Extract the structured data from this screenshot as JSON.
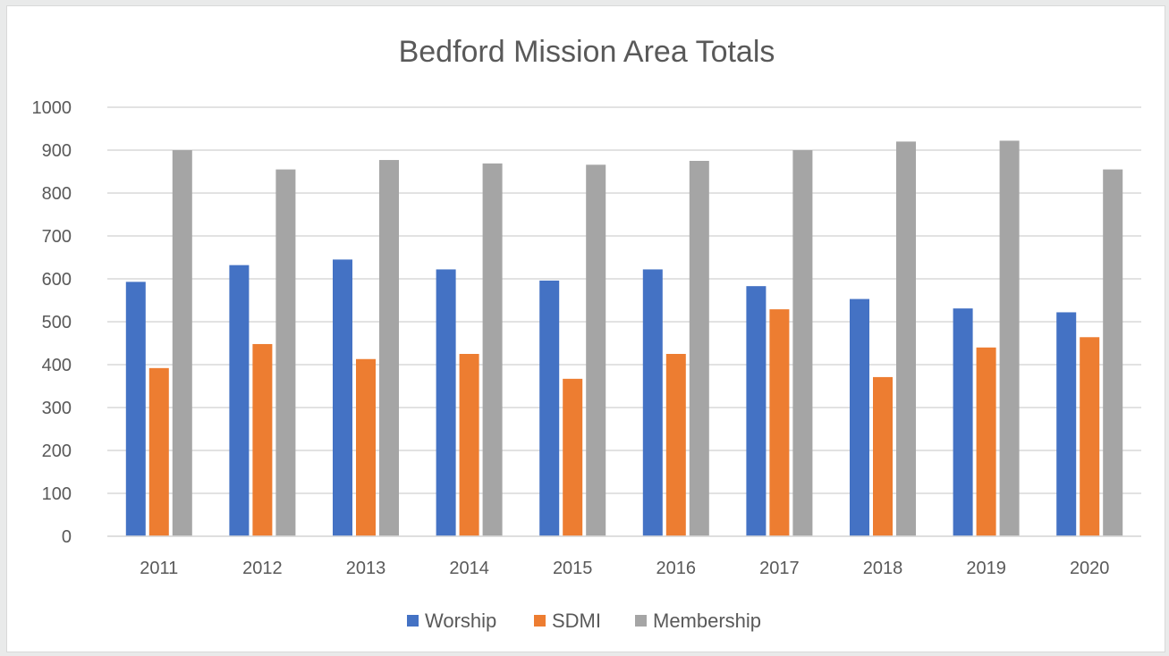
{
  "chart_data": {
    "type": "bar",
    "title": "Bedford Mission Area Totals",
    "xlabel": "",
    "ylabel": "",
    "categories": [
      "2011",
      "2012",
      "2013",
      "2014",
      "2015",
      "2016",
      "2017",
      "2018",
      "2019",
      "2020"
    ],
    "ylim": [
      0,
      1000
    ],
    "yticks": [
      0,
      100,
      200,
      300,
      400,
      500,
      600,
      700,
      800,
      900,
      1000
    ],
    "grid": true,
    "legend_position": "bottom",
    "series": [
      {
        "name": "Worship",
        "color": "#4472c4",
        "values": [
          593,
          632,
          645,
          622,
          596,
          622,
          583,
          553,
          531,
          522
        ]
      },
      {
        "name": "SDMI",
        "color": "#ed7d31",
        "values": [
          392,
          448,
          413,
          425,
          367,
          425,
          529,
          371,
          440,
          464
        ]
      },
      {
        "name": "Membership",
        "color": "#a5a5a5",
        "values": [
          900,
          855,
          877,
          869,
          866,
          875,
          900,
          920,
          922,
          855
        ]
      }
    ]
  }
}
